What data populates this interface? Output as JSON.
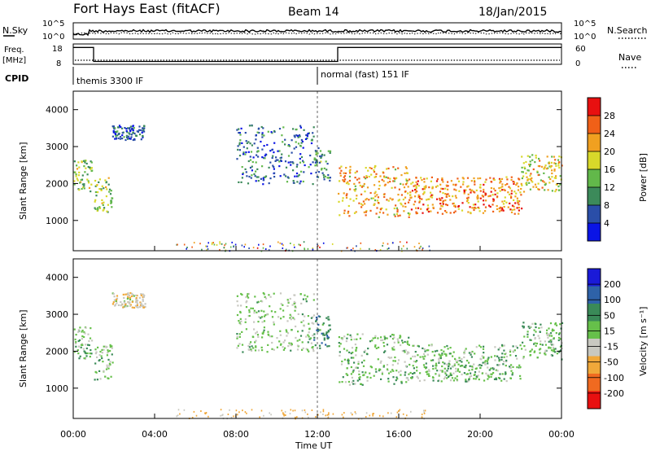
{
  "header": {
    "title": "Fort Hays East (fitACF)",
    "beam": "Beam 14",
    "date": "18/Jan/2015"
  },
  "noise_panel": {
    "left_label": "N.Sky",
    "right_label": "N.Search",
    "left_ticks": [
      "10^5",
      "10^0"
    ],
    "right_ticks": [
      "10^5",
      "10^0"
    ]
  },
  "freq_panel": {
    "left_label": "Freq.",
    "left_unit": "[MHz]",
    "right_label": "Nave",
    "left_ticks": [
      "18",
      "8"
    ],
    "right_ticks": [
      "60",
      "0"
    ],
    "cpid_label": "CPID",
    "cpid_segments": [
      {
        "start_h": 0,
        "text": "themis 3300 IF"
      },
      {
        "start_h": 12,
        "text": "normal (fast) 151 IF"
      }
    ],
    "freq_steps": [
      {
        "h": 0,
        "mhz": 17
      },
      {
        "h": 1,
        "mhz": 9.5
      },
      {
        "h": 13,
        "mhz": 17
      },
      {
        "h": 24,
        "mhz": 17
      }
    ]
  },
  "power_panel": {
    "ylabel": "Slant Range [km]",
    "yticks": [
      "1000",
      "2000",
      "3000",
      "4000"
    ],
    "colorbar_label": "Power [dB]",
    "colorbar_ticks": [
      "4",
      "8",
      "12",
      "16",
      "20",
      "24",
      "28"
    ]
  },
  "velocity_panel": {
    "ylabel": "Slant Range [km]",
    "yticks": [
      "1000",
      "2000",
      "3000",
      "4000"
    ],
    "colorbar_label": "Velocity [m s⁻¹]",
    "colorbar_ticks": [
      "200",
      "100",
      "50",
      "15",
      "-15",
      "-50",
      "-100",
      "-200"
    ]
  },
  "xaxis": {
    "label": "Time UT",
    "ticks": [
      "00:00",
      "04:00",
      "08:00",
      "12:00",
      "16:00",
      "20:00",
      "00:00"
    ]
  },
  "colors": {
    "power_scale": [
      "#0a14e6",
      "#2a4ea8",
      "#3c8a5a",
      "#62b84a",
      "#d8d82a",
      "#f0a020",
      "#f06018",
      "#e81010"
    ],
    "velocity_scale": [
      "#1a1ad8",
      "#2e62a8",
      "#3a8a58",
      "#66c04a",
      "#c8c8c0",
      "#f0a83a",
      "#f06a20",
      "#e81010"
    ]
  },
  "chart_data": [
    {
      "type": "heatmap",
      "name": "power",
      "x_range_h": [
        0,
        24
      ],
      "y_range_km": [
        180,
        4500
      ],
      "zlim": [
        0,
        30
      ],
      "scatter_bands": [
        {
          "t0": 0.0,
          "t1": 0.9,
          "r0": 1800,
          "r1": 2700,
          "center_db": 14
        },
        {
          "t0": 1.0,
          "t1": 1.9,
          "r0": 1250,
          "r1": 2200,
          "center_db": 14
        },
        {
          "t0": 1.9,
          "t1": 3.5,
          "r0": 3200,
          "r1": 3600,
          "center_db": 6
        },
        {
          "t0": 8.0,
          "t1": 11.8,
          "r0": 2000,
          "r1": 3600,
          "center_db": 7
        },
        {
          "t0": 11.8,
          "t1": 12.6,
          "r0": 2100,
          "r1": 3000,
          "center_db": 10
        },
        {
          "t0": 13.0,
          "t1": 16.5,
          "r0": 1100,
          "r1": 2500,
          "center_db": 20
        },
        {
          "t0": 16.5,
          "t1": 22.0,
          "r0": 1200,
          "r1": 2200,
          "center_db": 22
        },
        {
          "t0": 22.0,
          "t1": 24.0,
          "r0": 1800,
          "r1": 2800,
          "center_db": 18
        }
      ]
    },
    {
      "type": "heatmap",
      "name": "velocity",
      "x_range_h": [
        0,
        24
      ],
      "y_range_km": [
        180,
        4500
      ],
      "zlim": [
        -200,
        200
      ],
      "scatter_bands": [
        {
          "t0": 0.0,
          "t1": 0.9,
          "r0": 1800,
          "r1": 2700,
          "center_ms": 0
        },
        {
          "t0": 1.0,
          "t1": 1.9,
          "r0": 1250,
          "r1": 2200,
          "center_ms": 0
        },
        {
          "t0": 1.9,
          "t1": 3.5,
          "r0": 3200,
          "r1": 3600,
          "center_ms": -40
        },
        {
          "t0": 8.0,
          "t1": 11.8,
          "r0": 2000,
          "r1": 3600,
          "center_ms": -10
        },
        {
          "t0": 11.8,
          "t1": 12.6,
          "r0": 2100,
          "r1": 3000,
          "center_ms": 40
        },
        {
          "t0": 13.0,
          "t1": 16.5,
          "r0": 1100,
          "r1": 2500,
          "center_ms": 0
        },
        {
          "t0": 16.5,
          "t1": 22.0,
          "r0": 1200,
          "r1": 2200,
          "center_ms": 0
        },
        {
          "t0": 22.0,
          "t1": 24.0,
          "r0": 1800,
          "r1": 2800,
          "center_ms": 0
        }
      ],
      "ground_scatter_h": [
        [
          5,
          12.5
        ]
      ]
    }
  ]
}
